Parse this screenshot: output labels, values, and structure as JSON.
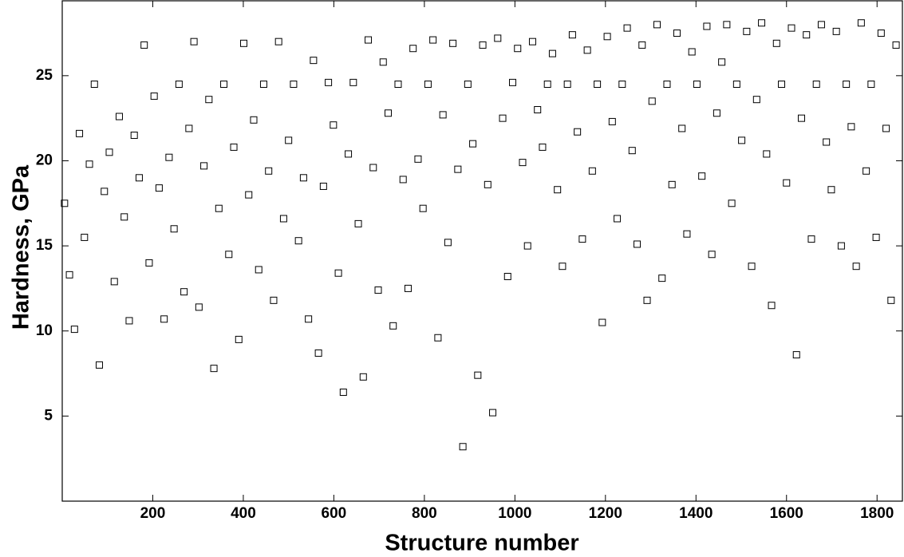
{
  "chart_data": {
    "type": "scatter",
    "x_label": "Structure number",
    "y_label": "Hardness, GPa",
    "color": "#000000",
    "marker": "square",
    "xlim": [
      0,
      1856
    ],
    "ylim": [
      0,
      29.4
    ],
    "xticks": [
      200,
      400,
      600,
      800,
      1000,
      1200,
      1400,
      1600,
      1800
    ],
    "yticks": [
      5,
      10,
      15,
      20,
      25
    ],
    "grid": false,
    "x": [
      5,
      16,
      27,
      38,
      49,
      60,
      71,
      82,
      93,
      104,
      115,
      126,
      137,
      148,
      159,
      170,
      181,
      192,
      203,
      214,
      225,
      236,
      247,
      258,
      269,
      280,
      291,
      302,
      313,
      324,
      335,
      346,
      357,
      368,
      379,
      390,
      401,
      412,
      423,
      434,
      445,
      456,
      467,
      478,
      489,
      500,
      511,
      522,
      533,
      544,
      555,
      566,
      577,
      588,
      599,
      610,
      621,
      632,
      643,
      654,
      665,
      676,
      687,
      698,
      709,
      720,
      731,
      742,
      753,
      764,
      775,
      786,
      797,
      808,
      819,
      830,
      841,
      852,
      863,
      874,
      885,
      896,
      907,
      918,
      929,
      940,
      951,
      962,
      973,
      984,
      995,
      1006,
      1017,
      1028,
      1039,
      1050,
      1061,
      1072,
      1083,
      1094,
      1105,
      1116,
      1127,
      1138,
      1149,
      1160,
      1171,
      1182,
      1193,
      1204,
      1215,
      1226,
      1237,
      1248,
      1259,
      1270,
      1281,
      1292,
      1303,
      1314,
      1325,
      1336,
      1347,
      1358,
      1369,
      1380,
      1391,
      1402,
      1413,
      1424,
      1435,
      1446,
      1457,
      1468,
      1479,
      1490,
      1501,
      1512,
      1523,
      1534,
      1545,
      1556,
      1567,
      1578,
      1589,
      1600,
      1611,
      1622,
      1633,
      1644,
      1655,
      1666,
      1677,
      1688,
      1699,
      1710,
      1721,
      1732,
      1743,
      1754,
      1765,
      1776,
      1787,
      1798,
      1809,
      1820,
      1831,
      1842
    ],
    "values": [
      17.5,
      13.3,
      10.1,
      21.6,
      15.5,
      19.8,
      24.5,
      8.0,
      18.2,
      20.5,
      12.9,
      22.6,
      16.7,
      10.6,
      21.5,
      19.0,
      26.8,
      14.0,
      23.8,
      18.4,
      10.7,
      20.2,
      16.0,
      24.5,
      12.3,
      21.9,
      27.0,
      11.4,
      19.7,
      23.6,
      7.8,
      17.2,
      24.5,
      14.5,
      20.8,
      9.5,
      26.9,
      18.0,
      22.4,
      13.6,
      24.5,
      19.4,
      11.8,
      27.0,
      16.6,
      21.2,
      24.5,
      15.3,
      19.0,
      10.7,
      25.9,
      8.7,
      18.5,
      24.6,
      22.1,
      13.4,
      6.4,
      20.4,
      24.6,
      16.3,
      7.3,
      27.1,
      19.6,
      12.4,
      25.8,
      22.8,
      10.3,
      24.5,
      18.9,
      12.5,
      26.6,
      20.1,
      17.2,
      24.5,
      27.1,
      9.6,
      22.7,
      15.2,
      26.9,
      19.5,
      3.2,
      24.5,
      21.0,
      7.4,
      26.8,
      18.6,
      5.2,
      27.2,
      22.5,
      13.2,
      24.6,
      26.6,
      19.9,
      15.0,
      27.0,
      23.0,
      20.8,
      24.5,
      26.3,
      18.3,
      13.8,
      24.5,
      27.4,
      21.7,
      15.4,
      26.5,
      19.4,
      24.5,
      10.5,
      27.3,
      22.3,
      16.6,
      24.5,
      27.8,
      20.6,
      15.1,
      26.8,
      11.8,
      23.5,
      28.0,
      13.1,
      24.5,
      18.6,
      27.5,
      21.9,
      15.7,
      26.4,
      24.5,
      19.1,
      27.9,
      14.5,
      22.8,
      25.8,
      28.0,
      17.5,
      24.5,
      21.2,
      27.6,
      13.8,
      23.6,
      28.1,
      20.4,
      11.5,
      26.9,
      24.5,
      18.7,
      27.8,
      8.6,
      22.5,
      27.4,
      15.4,
      24.5,
      28.0,
      21.1,
      18.3,
      27.6,
      15.0,
      24.5,
      22.0,
      13.8,
      28.1,
      19.4,
      24.5,
      15.5,
      27.5,
      21.9,
      11.8,
      26.8
    ]
  }
}
